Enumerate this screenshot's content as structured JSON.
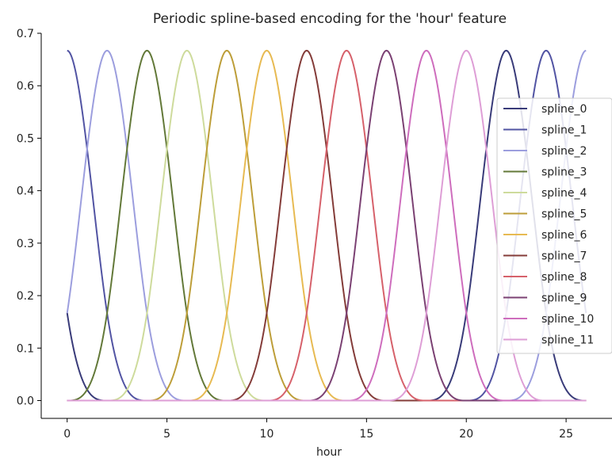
{
  "chart_data": {
    "type": "line",
    "title": "Periodic spline-based encoding for the 'hour' feature",
    "xlabel": "hour",
    "ylabel": "",
    "xlim": [
      -1.3,
      27.3
    ],
    "ylim": [
      -0.034,
      0.7
    ],
    "xticks": [
      0,
      5,
      10,
      15,
      20,
      25
    ],
    "yticks": [
      0.0,
      0.1,
      0.2,
      0.3,
      0.4,
      0.5,
      0.6,
      0.7
    ],
    "x_range": [
      0,
      26
    ],
    "spline_peak": 0.667,
    "legend_position": "center-right",
    "grid": false,
    "series": [
      {
        "name": "spline_0",
        "color": "#393b79",
        "peaks": [
          -2,
          22
        ]
      },
      {
        "name": "spline_1",
        "color": "#5254a3",
        "peaks": [
          0,
          24
        ]
      },
      {
        "name": "spline_2",
        "color": "#9c9ede",
        "peaks": [
          2,
          26
        ]
      },
      {
        "name": "spline_3",
        "color": "#637939",
        "peaks": [
          4
        ]
      },
      {
        "name": "spline_4",
        "color": "#cedb9c",
        "peaks": [
          6
        ]
      },
      {
        "name": "spline_5",
        "color": "#bd9e39",
        "peaks": [
          8
        ]
      },
      {
        "name": "spline_6",
        "color": "#e7ba52",
        "peaks": [
          10
        ]
      },
      {
        "name": "spline_7",
        "color": "#843c39",
        "peaks": [
          12
        ]
      },
      {
        "name": "spline_8",
        "color": "#d6616b",
        "peaks": [
          14
        ]
      },
      {
        "name": "spline_9",
        "color": "#7b4173",
        "peaks": [
          16
        ]
      },
      {
        "name": "spline_10",
        "color": "#ce6dbd",
        "peaks": [
          18
        ]
      },
      {
        "name": "spline_11",
        "color": "#de9ed6",
        "peaks": [
          20
        ]
      }
    ]
  }
}
